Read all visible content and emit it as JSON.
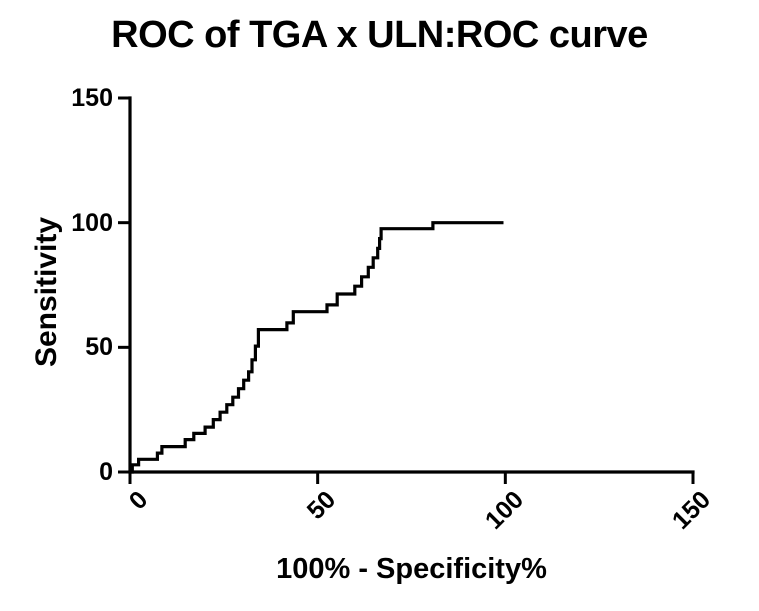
{
  "page": {
    "background": "#ffffff",
    "text_color": "#000000"
  },
  "chart_data": {
    "type": "line",
    "style": "roc-step-curve",
    "title": "ROC of TGA x ULN:ROC curve",
    "xlabel": "100% - Specificity%",
    "ylabel": "Sensitivity",
    "xlim": [
      0,
      150
    ],
    "ylim": [
      0,
      150
    ],
    "xticks": [
      0,
      50,
      100,
      150
    ],
    "yticks": [
      0,
      50,
      100,
      150
    ],
    "grid": false,
    "legend": "none",
    "line_color": "#000000",
    "axis_color": "#000000",
    "series": [
      {
        "name": "ROC curve",
        "x_unit": "100% - Specificity%",
        "y_unit": "Sensitivity %",
        "start": [
          0,
          0
        ],
        "rise_points": [
          [
            0.6,
            2.9
          ],
          [
            2.3,
            5.1
          ],
          [
            7.3,
            7.6
          ],
          [
            8.5,
            10.2
          ],
          [
            14.7,
            13.0
          ],
          [
            17.0,
            15.5
          ],
          [
            20.0,
            18.0
          ],
          [
            22.2,
            21.0
          ],
          [
            24.0,
            24.0
          ],
          [
            25.8,
            27.0
          ],
          [
            27.4,
            30.0
          ],
          [
            28.9,
            33.4
          ],
          [
            30.3,
            36.8
          ],
          [
            31.6,
            40.2
          ],
          [
            32.5,
            45.0
          ],
          [
            33.4,
            50.5
          ],
          [
            34.2,
            57.1
          ],
          [
            41.8,
            59.8
          ],
          [
            43.5,
            64.3
          ],
          [
            52.5,
            67.0
          ],
          [
            55.2,
            71.4
          ],
          [
            59.9,
            74.5
          ],
          [
            61.7,
            78.3
          ],
          [
            63.5,
            82.1
          ],
          [
            64.8,
            85.9
          ],
          [
            66.0,
            89.7
          ],
          [
            66.5,
            93.6
          ],
          [
            66.9,
            97.6
          ],
          [
            80.7,
            100.0
          ]
        ],
        "end": [
          99.5,
          100.0
        ]
      }
    ]
  }
}
